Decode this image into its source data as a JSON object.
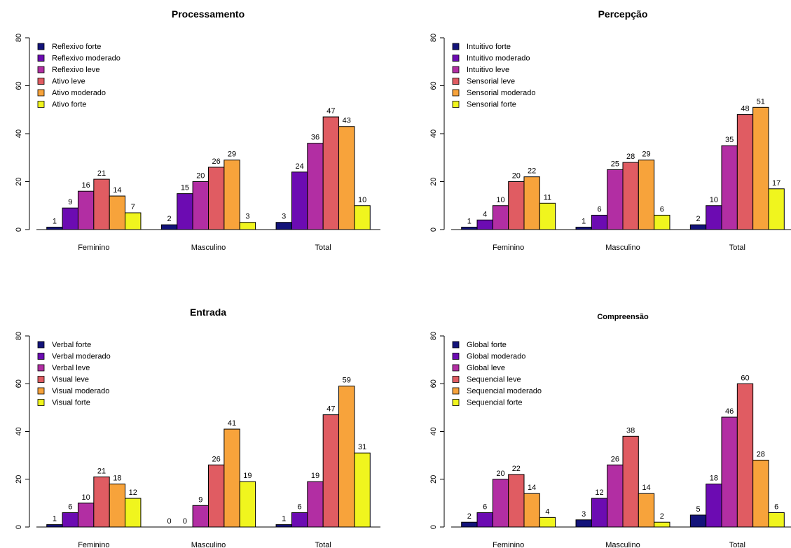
{
  "colors": [
    "#13137a",
    "#6c0bb2",
    "#b22ea3",
    "#e05c62",
    "#f7a33b",
    "#f0f51e"
  ],
  "chart_data": [
    {
      "type": "bar",
      "title": "Processamento",
      "categories": [
        "Feminino",
        "Masculino",
        "Total"
      ],
      "ylim": [
        0,
        80
      ],
      "yticks": [
        0,
        20,
        40,
        60,
        80
      ],
      "legend_position": "top-left",
      "series": [
        {
          "name": "Reflexivo forte",
          "values": [
            1,
            2,
            3
          ]
        },
        {
          "name": "Reflexivo moderado",
          "values": [
            9,
            15,
            24
          ]
        },
        {
          "name": "Reflexivo leve",
          "values": [
            16,
            20,
            36
          ]
        },
        {
          "name": "Ativo leve",
          "values": [
            21,
            26,
            47
          ]
        },
        {
          "name": "Ativo moderado",
          "values": [
            14,
            29,
            43
          ]
        },
        {
          "name": "Ativo forte",
          "values": [
            7,
            3,
            10
          ]
        }
      ]
    },
    {
      "type": "bar",
      "title": "Percepção",
      "categories": [
        "Feminino",
        "Masculino",
        "Total"
      ],
      "ylim": [
        0,
        80
      ],
      "yticks": [
        0,
        20,
        40,
        60,
        80
      ],
      "legend_position": "top-left",
      "series": [
        {
          "name": "Intuitivo forte",
          "values": [
            1,
            1,
            2
          ]
        },
        {
          "name": "Intuitivo moderado",
          "values": [
            4,
            6,
            10
          ]
        },
        {
          "name": "Intuitivo leve",
          "values": [
            10,
            25,
            35
          ]
        },
        {
          "name": "Sensorial leve",
          "values": [
            20,
            28,
            48
          ]
        },
        {
          "name": "Sensorial moderado",
          "values": [
            22,
            29,
            51
          ]
        },
        {
          "name": "Sensorial forte",
          "values": [
            11,
            6,
            17
          ]
        }
      ]
    },
    {
      "type": "bar",
      "title": "Entrada",
      "categories": [
        "Feminino",
        "Masculino",
        "Total"
      ],
      "ylim": [
        0,
        80
      ],
      "yticks": [
        0,
        20,
        40,
        60,
        80
      ],
      "legend_position": "top-left",
      "series": [
        {
          "name": "Verbal forte",
          "values": [
            1,
            0,
            1
          ]
        },
        {
          "name": "Verbal moderado",
          "values": [
            6,
            0,
            6
          ]
        },
        {
          "name": "Verbal leve",
          "values": [
            10,
            9,
            19
          ]
        },
        {
          "name": "Visual leve",
          "values": [
            21,
            26,
            47
          ]
        },
        {
          "name": "Visual moderado",
          "values": [
            18,
            41,
            59
          ]
        },
        {
          "name": "Visual forte",
          "values": [
            12,
            19,
            31
          ]
        }
      ]
    },
    {
      "type": "bar",
      "title": "Compreensão",
      "categories": [
        "Feminino",
        "Masculino",
        "Total"
      ],
      "ylim": [
        0,
        80
      ],
      "yticks": [
        0,
        20,
        40,
        60,
        80
      ],
      "legend_position": "top-left",
      "series": [
        {
          "name": "Global forte",
          "values": [
            2,
            3,
            5
          ]
        },
        {
          "name": "Global moderado",
          "values": [
            6,
            12,
            18
          ]
        },
        {
          "name": "Global leve",
          "values": [
            20,
            26,
            46
          ]
        },
        {
          "name": "Sequencial leve",
          "values": [
            22,
            38,
            60
          ]
        },
        {
          "name": "Sequencial moderado",
          "values": [
            14,
            14,
            28
          ]
        },
        {
          "name": "Sequencial forte",
          "values": [
            4,
            2,
            6
          ]
        }
      ]
    }
  ]
}
